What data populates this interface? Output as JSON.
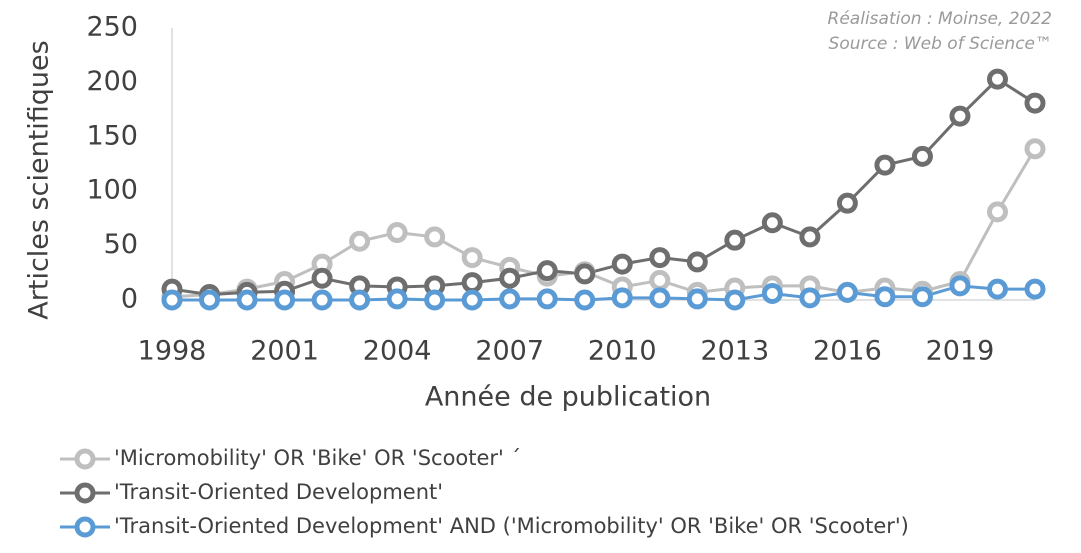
{
  "chart_data": {
    "type": "line",
    "y_label": "Articles scientifiques",
    "x_label": "Année de publication",
    "annotations": [
      "Réalisation : Moinse, 2022",
      "Source : Web of Science™"
    ],
    "x": [
      1998,
      1999,
      2000,
      2001,
      2002,
      2003,
      2004,
      2005,
      2006,
      2007,
      2008,
      2009,
      2010,
      2011,
      2012,
      2013,
      2014,
      2015,
      2016,
      2017,
      2018,
      2019,
      2020,
      2021
    ],
    "series": [
      {
        "name": "'Micromobility' OR 'Bike' OR 'Scooter' ´",
        "color": "#bfbfbf",
        "values": [
          3,
          5,
          10,
          17,
          33,
          54,
          62,
          58,
          39,
          30,
          22,
          26,
          12,
          18,
          7,
          11,
          13,
          13,
          7,
          11,
          8,
          17,
          81,
          139
        ]
      },
      {
        "name": "'Transit-Oriented Development'",
        "color": "#6e6e6e",
        "values": [
          10,
          5,
          7,
          8,
          20,
          13,
          12,
          13,
          16,
          20,
          27,
          24,
          33,
          39,
          35,
          55,
          71,
          58,
          89,
          124,
          132,
          169,
          203,
          181
        ]
      },
      {
        "name": "'Transit-Oriented Development' AND ('Micromobility' OR 'Bike' OR 'Scooter')",
        "color": "#5b9bd5",
        "values": [
          0,
          0,
          0,
          0,
          0,
          0,
          1,
          0,
          0,
          1,
          1,
          0,
          2,
          2,
          1,
          0,
          6,
          2,
          7,
          3,
          3,
          13,
          10,
          10
        ]
      }
    ],
    "xlim": [
      1998,
      2021
    ],
    "xticks": [
      1998,
      2001,
      2004,
      2007,
      2010,
      2013,
      2016,
      2019
    ],
    "ylim": [
      0,
      250
    ],
    "yticks": [
      0,
      50,
      100,
      150,
      200,
      250
    ]
  }
}
